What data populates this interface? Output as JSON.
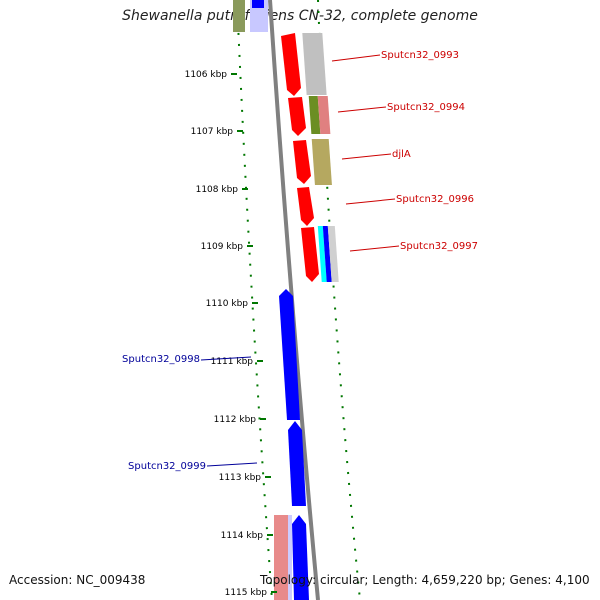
{
  "title": "Shewanella putrefaciens CN-32, complete genome",
  "accession": "Accession: NC_009438",
  "topology": "Topology: circular; Length: 4,659,220 bp; Genes: 4,100",
  "kbp_ticks": [
    "1106 kbp",
    "1107 kbp",
    "1108 kbp",
    "1109 kbp",
    "1110 kbp",
    "1111 kbp",
    "1112 kbp",
    "1113 kbp",
    "1114 kbp",
    "1115 kbp"
  ],
  "gene_labels": [
    {
      "text": "Sputcn32_0993",
      "strand": "forward"
    },
    {
      "text": "Sputcn32_0994",
      "strand": "forward"
    },
    {
      "text": "djlA",
      "strand": "forward"
    },
    {
      "text": "Sputcn32_0996",
      "strand": "forward"
    },
    {
      "text": "Sputcn32_0997",
      "strand": "forward"
    },
    {
      "text": "Sputcn32_0998",
      "strand": "reverse"
    },
    {
      "text": "Sputcn32_0999",
      "strand": "reverse"
    }
  ],
  "colors": {
    "forward_gene": "#ff0000",
    "reverse_gene": "#0000ff",
    "forward_label": "#cc0000",
    "reverse_label": "#000099",
    "tick": "#007700",
    "backbone": "#808080"
  }
}
